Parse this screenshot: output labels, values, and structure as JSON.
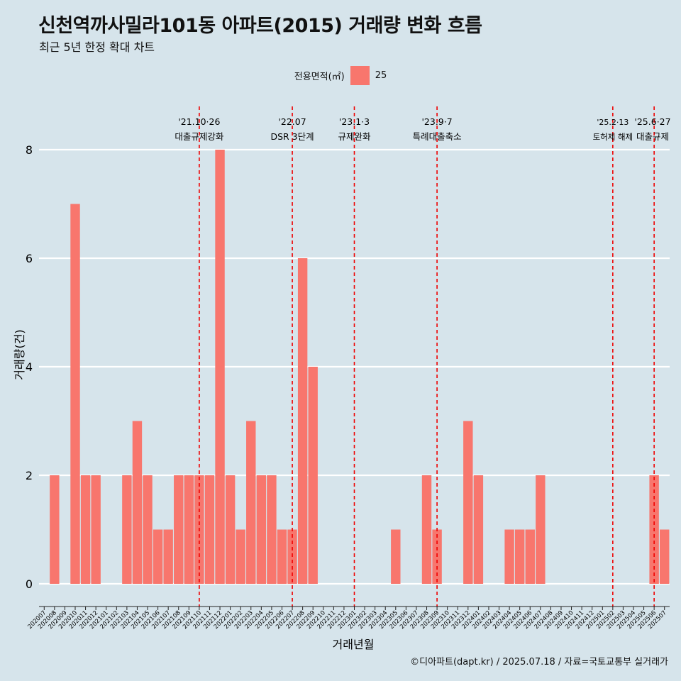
{
  "title": "신천역까사밀라101동 아파트(2015) 거래량 변화 흐름",
  "subtitle": "최근 5년 한정 확대 차트",
  "caption": "©디아파트(dapt.kr) / 2025.07.18 / 자료=국토교통부 실거래가",
  "colors": {
    "background": "#d6e4eb",
    "bar": "#f8766d",
    "event_line": "#ee0000",
    "grid": "#ffffff"
  },
  "chart_data": {
    "type": "bar",
    "title": "신천역까사밀라101동 아파트(2015) 거래량 변화 흐름",
    "subtitle": "최근 5년 한정 확대 차트",
    "xlabel": "거래년월",
    "ylabel": "거래량(건)",
    "ylim": [
      0,
      8
    ],
    "yticks": [
      0,
      2,
      4,
      6,
      8
    ],
    "grid": true,
    "legend": {
      "title": "전용면적(㎡)",
      "position": "top",
      "entries": [
        "25"
      ]
    },
    "categories": [
      "202007",
      "202008",
      "202009",
      "202010",
      "202011",
      "202012",
      "202101",
      "202102",
      "202103",
      "202104",
      "202105",
      "202106",
      "202107",
      "202108",
      "202109",
      "202110",
      "202111",
      "202112",
      "202201",
      "202202",
      "202203",
      "202204",
      "202205",
      "202206",
      "202207",
      "202208",
      "202209",
      "202210",
      "202211",
      "202212",
      "202301",
      "202302",
      "202303",
      "202304",
      "202305",
      "202306",
      "202307",
      "202308",
      "202309",
      "202310",
      "202311",
      "202312",
      "202401",
      "202402",
      "202403",
      "202404",
      "202405",
      "202406",
      "202407",
      "202408",
      "202409",
      "202410",
      "202411",
      "202412",
      "202501",
      "202502",
      "202503",
      "202504",
      "202505",
      "202506",
      "202507"
    ],
    "series": [
      {
        "name": "25",
        "values": [
          0,
          2,
          0,
          7,
          2,
          2,
          0,
          0,
          2,
          3,
          2,
          1,
          1,
          2,
          2,
          2,
          2,
          8,
          2,
          1,
          3,
          2,
          2,
          1,
          1,
          6,
          4,
          0,
          0,
          0,
          0,
          0,
          0,
          0,
          1,
          0,
          0,
          2,
          1,
          0,
          0,
          3,
          2,
          0,
          0,
          1,
          1,
          1,
          2,
          0,
          0,
          0,
          0,
          0,
          0,
          0,
          0,
          0,
          0,
          2,
          1
        ]
      }
    ],
    "annotations": [
      {
        "month": "202110",
        "date": "'21.10·26",
        "label": "대출규제강화"
      },
      {
        "month": "202207",
        "date": "'22.07",
        "label": "DSR 3단계"
      },
      {
        "month": "202301",
        "date": "'23.1·3",
        "label": "규제완화"
      },
      {
        "month": "202309",
        "date": "'23.9·7",
        "label": "특례대출축소"
      },
      {
        "month": "202502",
        "date": "'25.2·13",
        "label": "토허제 해제"
      },
      {
        "month": "202506",
        "date": "'25.6·27",
        "label": "대출규제"
      }
    ]
  }
}
